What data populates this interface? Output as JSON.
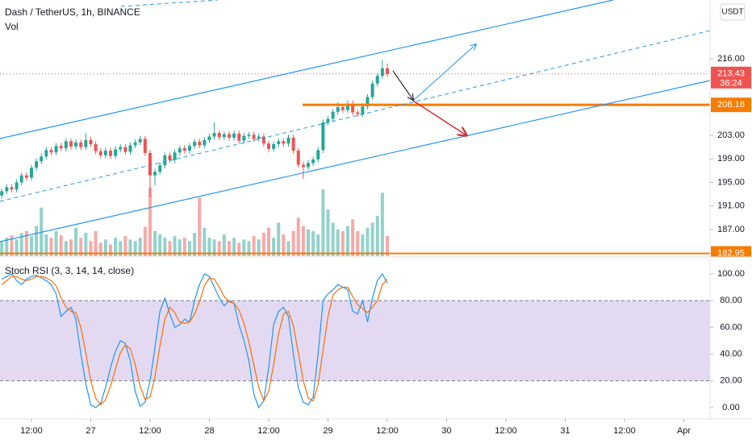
{
  "chart_data": {
    "type": "candlestick",
    "title": "Dash / TetherUS, 1h, BINANCE",
    "volume_label": "Vol",
    "currency": "USDT",
    "ohlc": [
      [
        192.8,
        194.0,
        192.3,
        193.5
      ],
      [
        193.5,
        194.7,
        193.0,
        194.2
      ],
      [
        194.2,
        194.7,
        193.3,
        193.8
      ],
      [
        193.8,
        195.5,
        193.3,
        195.0
      ],
      [
        195.0,
        196.7,
        194.5,
        196.2
      ],
      [
        196.2,
        196.7,
        195.3,
        195.8
      ],
      [
        195.8,
        198.0,
        195.3,
        197.5
      ],
      [
        197.5,
        199.1,
        197.0,
        198.6
      ],
      [
        198.6,
        199.9,
        198.1,
        199.4
      ],
      [
        199.4,
        201.0,
        198.9,
        200.5
      ],
      [
        200.5,
        201.0,
        199.6,
        200.1
      ],
      [
        200.1,
        201.7,
        199.6,
        201.2
      ],
      [
        201.2,
        201.7,
        200.3,
        200.8
      ],
      [
        200.8,
        202.5,
        200.3,
        202.0
      ],
      [
        202.0,
        202.5,
        200.6,
        201.1
      ],
      [
        201.1,
        202.3,
        200.6,
        201.8
      ],
      [
        201.8,
        202.3,
        200.5,
        201.0
      ],
      [
        201.0,
        203.4,
        200.5,
        202.2
      ],
      [
        202.2,
        202.7,
        201.0,
        201.5
      ],
      [
        201.5,
        202.0,
        199.8,
        200.3
      ],
      [
        200.3,
        200.8,
        199.1,
        199.6
      ],
      [
        199.6,
        200.9,
        199.1,
        200.4
      ],
      [
        200.4,
        200.9,
        199.0,
        199.5
      ],
      [
        199.5,
        201.1,
        199.0,
        200.6
      ],
      [
        200.6,
        201.5,
        200.1,
        201.0
      ],
      [
        201.0,
        201.5,
        199.7,
        200.2
      ],
      [
        200.2,
        201.8,
        199.7,
        201.3
      ],
      [
        201.3,
        202.3,
        200.8,
        201.8
      ],
      [
        201.8,
        202.9,
        201.3,
        202.4
      ],
      [
        202.4,
        202.9,
        199.5,
        200.0
      ],
      [
        200.0,
        200.5,
        192.5,
        196.2
      ],
      [
        196.2,
        197.3,
        194.5,
        196.8
      ],
      [
        196.8,
        198.4,
        196.3,
        197.9
      ],
      [
        197.9,
        200.1,
        197.4,
        199.6
      ],
      [
        199.6,
        200.1,
        198.3,
        198.8
      ],
      [
        198.8,
        200.6,
        198.3,
        200.1
      ],
      [
        200.1,
        201.3,
        199.6,
        200.8
      ],
      [
        200.8,
        201.3,
        199.9,
        200.4
      ],
      [
        200.4,
        201.7,
        199.9,
        201.2
      ],
      [
        201.2,
        202.4,
        200.7,
        201.9
      ],
      [
        201.9,
        202.4,
        200.8,
        201.3
      ],
      [
        201.3,
        202.7,
        200.8,
        202.2
      ],
      [
        202.2,
        203.3,
        201.7,
        202.8
      ],
      [
        202.8,
        205.2,
        202.3,
        203.4
      ],
      [
        203.4,
        203.9,
        202.2,
        202.7
      ],
      [
        202.7,
        203.7,
        202.2,
        203.2
      ],
      [
        203.2,
        203.7,
        202.1,
        202.6
      ],
      [
        202.6,
        203.8,
        202.1,
        203.3
      ],
      [
        203.3,
        203.8,
        201.6,
        202.1
      ],
      [
        202.1,
        203.4,
        201.6,
        202.9
      ],
      [
        202.9,
        203.6,
        202.4,
        203.1
      ],
      [
        203.1,
        203.6,
        201.9,
        202.4
      ],
      [
        202.4,
        203.3,
        201.9,
        202.8
      ],
      [
        202.8,
        203.3,
        201.1,
        201.6
      ],
      [
        201.6,
        202.1,
        200.2,
        200.7
      ],
      [
        200.7,
        202.0,
        200.2,
        201.5
      ],
      [
        201.5,
        202.5,
        201.0,
        202.0
      ],
      [
        202.0,
        202.5,
        201.1,
        201.6
      ],
      [
        201.6,
        203.1,
        201.1,
        202.6
      ],
      [
        202.6,
        203.1,
        199.9,
        200.4
      ],
      [
        200.4,
        200.9,
        197.5,
        198.0
      ],
      [
        198.0,
        198.5,
        195.6,
        197.6
      ],
      [
        197.6,
        198.8,
        197.1,
        198.3
      ],
      [
        198.3,
        199.4,
        197.8,
        198.9
      ],
      [
        198.9,
        201.0,
        198.4,
        200.5
      ],
      [
        200.5,
        205.7,
        200.0,
        205.2
      ],
      [
        205.2,
        206.3,
        204.7,
        205.8
      ],
      [
        205.8,
        207.5,
        205.3,
        207.0
      ],
      [
        207.0,
        208.6,
        206.5,
        207.8
      ],
      [
        207.8,
        208.3,
        206.8,
        207.3
      ],
      [
        207.3,
        208.9,
        206.8,
        208.4
      ],
      [
        208.4,
        208.9,
        206.4,
        206.9
      ],
      [
        206.9,
        207.4,
        206.1,
        206.6
      ],
      [
        206.6,
        208.4,
        206.1,
        207.9
      ],
      [
        207.9,
        210.0,
        207.4,
        209.5
      ],
      [
        209.5,
        212.3,
        209.0,
        211.8
      ],
      [
        211.8,
        213.6,
        211.3,
        213.1
      ],
      [
        213.1,
        215.8,
        212.6,
        214.4
      ],
      [
        214.4,
        215.2,
        213.0,
        213.43
      ]
    ],
    "volume": [
      18,
      22,
      25,
      20,
      28,
      30,
      24,
      36,
      58,
      26,
      22,
      30,
      25,
      18,
      20,
      34,
      22,
      28,
      18,
      30,
      16,
      20,
      14,
      22,
      18,
      24,
      20,
      18,
      22,
      35,
      82,
      30,
      26,
      22,
      18,
      24,
      20,
      22,
      18,
      28,
      70,
      34,
      22,
      20,
      18,
      26,
      18,
      22,
      16,
      20,
      18,
      24,
      20,
      28,
      34,
      22,
      40,
      26,
      18,
      30,
      46,
      36,
      32,
      30,
      26,
      80,
      56,
      40,
      32,
      30,
      36,
      44,
      30,
      26,
      34,
      40,
      48,
      76,
      24
    ],
    "up_color": "#26a69a",
    "down_color": "#ef5350",
    "ylim": [
      182.48,
      225.99
    ],
    "yticks": [
      {
        "value": 216,
        "label": "216.00"
      },
      {
        "value": 203,
        "label": "203.00"
      },
      {
        "value": 199,
        "label": "199.00"
      },
      {
        "value": 195,
        "label": "195.00"
      },
      {
        "value": 191,
        "label": "191.00"
      },
      {
        "value": 187,
        "label": "187.00"
      }
    ],
    "last_price": 213.43,
    "countdown": "36:24",
    "levels": [
      208.18,
      182.95
    ],
    "xlim": [
      -0.36,
      143.3
    ],
    "xticks": [
      {
        "value": 6,
        "label": "12:00"
      },
      {
        "value": 18,
        "label": "27"
      },
      {
        "value": 30,
        "label": "12:00"
      },
      {
        "value": 42,
        "label": "28"
      },
      {
        "value": 54,
        "label": "12:00"
      },
      {
        "value": 66,
        "label": "29"
      },
      {
        "value": 78,
        "label": "12:00"
      },
      {
        "value": 90,
        "label": "30"
      },
      {
        "value": 102,
        "label": "12:00"
      },
      {
        "value": 114,
        "label": "31"
      },
      {
        "value": 126,
        "label": "12:00"
      },
      {
        "value": 138,
        "label": "Apr"
      }
    ],
    "indicator": {
      "title": "Stoch RSI (3, 3, 14, 14, close)",
      "ylim": [
        -8.43,
        113.25
      ],
      "yticks": [
        {
          "value": 0,
          "label": "0.00"
        },
        {
          "value": 20,
          "label": "20.00"
        },
        {
          "value": 40,
          "label": "40.00"
        },
        {
          "value": 60,
          "label": "60.00"
        },
        {
          "value": 80,
          "label": "80.00"
        },
        {
          "value": 100,
          "label": "100.00"
        }
      ],
      "series": [
        {
          "color": "#2196f3",
          "values": [
            96,
            98,
            100,
            95,
            92,
            96,
            98,
            99,
            97,
            95,
            92,
            85,
            68,
            72,
            75,
            66,
            40,
            18,
            2,
            0,
            3,
            15,
            30,
            42,
            50,
            48,
            35,
            12,
            1,
            4,
            20,
            45,
            72,
            82,
            70,
            60,
            62,
            66,
            64,
            80,
            92,
            100,
            98,
            90,
            82,
            76,
            80,
            78,
            62,
            50,
            35,
            10,
            0,
            5,
            30,
            62,
            72,
            75,
            68,
            40,
            15,
            4,
            2,
            8,
            40,
            80,
            85,
            88,
            92,
            90,
            88,
            72,
            70,
            80,
            64,
            82,
            95,
            100,
            93
          ]
        },
        {
          "color": "#ff6d00",
          "values": [
            92,
            95,
            98,
            98,
            96,
            95,
            96,
            98,
            98,
            97,
            95,
            91,
            82,
            75,
            72,
            71,
            60,
            41,
            20,
            7,
            2,
            6,
            16,
            29,
            41,
            47,
            44,
            32,
            16,
            6,
            8,
            23,
            46,
            66,
            75,
            71,
            64,
            63,
            64,
            70,
            79,
            91,
            97,
            96,
            90,
            83,
            79,
            78,
            73,
            63,
            49,
            32,
            15,
            5,
            12,
            32,
            55,
            70,
            72,
            61,
            41,
            20,
            7,
            5,
            17,
            43,
            68,
            84,
            88,
            90,
            90,
            83,
            77,
            74,
            71,
            75,
            80,
            92,
            96
          ]
        }
      ]
    }
  }
}
